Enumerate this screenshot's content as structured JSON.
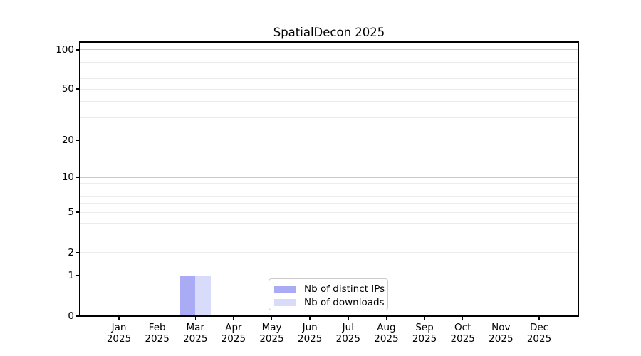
{
  "window": {
    "background": "#ffffff"
  },
  "chart_data": {
    "type": "bar",
    "title": "SpatialDecon 2025",
    "categories": [
      "Jan 2025",
      "Feb 2025",
      "Mar 2025",
      "Apr 2025",
      "May 2025",
      "Jun 2025",
      "Jul 2025",
      "Aug 2025",
      "Sep 2025",
      "Oct 2025",
      "Nov 2025",
      "Dec 2025"
    ],
    "series": [
      {
        "name": "Nb of distinct IPs",
        "color": "#aaabf5",
        "values": [
          0,
          0,
          1,
          0,
          0,
          0,
          0,
          0,
          0,
          0,
          0,
          0
        ]
      },
      {
        "name": "Nb of downloads",
        "color": "#d9dbfa",
        "values": [
          0,
          0,
          1,
          0,
          0,
          0,
          0,
          0,
          0,
          0,
          0,
          0
        ]
      }
    ],
    "xlabel": "",
    "ylabel": "",
    "yscale": "log1p",
    "ylim": [
      0,
      112
    ],
    "yticks_labeled": [
      0,
      1,
      2,
      5,
      10,
      20,
      50,
      100
    ],
    "yticks_major_grid": [
      1,
      10,
      100
    ],
    "yticks_minor_grid": [
      2,
      3,
      4,
      5,
      6,
      7,
      8,
      9,
      20,
      30,
      40,
      50,
      60,
      70,
      80,
      90
    ],
    "grid": "horizontal",
    "legend_position": "bottom-center"
  },
  "colors": {
    "spine": "#000000",
    "grid_major": "#c9c9c9",
    "grid_minor": "#ececec",
    "text": "#000000",
    "legend_border": "#cccccc",
    "legend_background": "#ffffff"
  }
}
